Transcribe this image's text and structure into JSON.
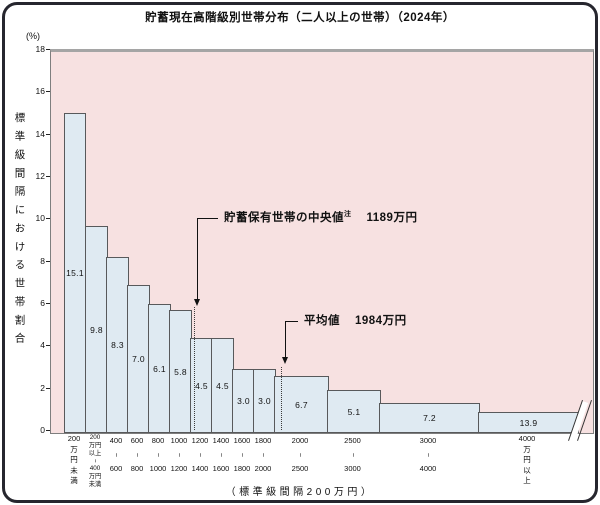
{
  "window": {
    "title": "貯蓄現在高階級別世帯分布（二人以上の世帯）（2024年）"
  },
  "chart_data": {
    "type": "bar",
    "title": "貯蓄現在高階級別世帯分布（二人以上の世帯）（2024年）",
    "y_unit": "(%)",
    "ylabel": "標準級間隔における世帯割合",
    "x_note": "（標準級間隔200万円）",
    "ylim": [
      0,
      18
    ],
    "y_ticks": [
      0,
      2,
      4,
      6,
      8,
      10,
      12,
      14,
      16,
      18
    ],
    "grid": false,
    "legend": "none",
    "categories": [
      "200万円未満",
      "200万円以上〜400万円未満",
      "400〜600",
      "600〜800",
      "800〜1000",
      "1000〜1200",
      "1200〜1400",
      "1400〜1600",
      "1600〜1800",
      "1800〜2000",
      "2000〜2500",
      "2500〜3000",
      "3000〜4000",
      "4000万円以上"
    ],
    "values": [
      15.1,
      9.8,
      8.3,
      7.0,
      6.1,
      5.8,
      4.5,
      4.5,
      3.0,
      3.0,
      6.7,
      5.1,
      7.2,
      13.9
    ],
    "bars": [
      {
        "range_lines": [
          "200",
          "万",
          "円",
          "未",
          "満"
        ],
        "value": 15.1,
        "density": 15.1,
        "interval_units": 1
      },
      {
        "range_lines": [
          "200",
          "万円",
          "以上",
          "~",
          "400",
          "万円",
          "未満"
        ],
        "small": true,
        "value": 9.8,
        "density": 9.8,
        "interval_units": 1
      },
      {
        "range_lines": [
          "400",
          "~",
          "600"
        ],
        "value": 8.3,
        "density": 8.3,
        "interval_units": 1
      },
      {
        "range_lines": [
          "600",
          "~",
          "800"
        ],
        "value": 7.0,
        "density": 7.0,
        "interval_units": 1
      },
      {
        "range_lines": [
          "800",
          "~",
          "1000"
        ],
        "value": 6.1,
        "density": 6.1,
        "interval_units": 1
      },
      {
        "range_lines": [
          "1000",
          "~",
          "1200"
        ],
        "value": 5.8,
        "density": 5.8,
        "interval_units": 1
      },
      {
        "range_lines": [
          "1200",
          "~",
          "1400"
        ],
        "value": 4.5,
        "density": 4.5,
        "interval_units": 1
      },
      {
        "range_lines": [
          "1400",
          "~",
          "1600"
        ],
        "value": 4.5,
        "density": 4.5,
        "interval_units": 1
      },
      {
        "range_lines": [
          "1600",
          "~",
          "1800"
        ],
        "value": 3.0,
        "density": 3.0,
        "interval_units": 1
      },
      {
        "range_lines": [
          "1800",
          "~",
          "2000"
        ],
        "value": 3.0,
        "density": 3.0,
        "interval_units": 1
      },
      {
        "range_lines": [
          "2000",
          "~",
          "2500"
        ],
        "value": 6.7,
        "density": 2.68,
        "interval_units": 2.5
      },
      {
        "range_lines": [
          "2500",
          "~",
          "3000"
        ],
        "value": 5.1,
        "density": 2.04,
        "interval_units": 2.5
      },
      {
        "range_lines": [
          "3000",
          "~",
          "4000"
        ],
        "value": 7.2,
        "density": 1.44,
        "interval_units": 5
      },
      {
        "range_lines": [
          "4000",
          "万",
          "円",
          "以",
          "上"
        ],
        "value": 13.9,
        "density": 1.0,
        "interval_units": 5,
        "truncated": true
      }
    ],
    "annotations": {
      "median": {
        "label": "貯蓄保有世帯の中央値",
        "sup": "注",
        "value_text": "1189万円",
        "amount_man_yen": 1189
      },
      "mean": {
        "label": "平均値",
        "value_text": "1984万円",
        "amount_man_yen": 1984
      }
    }
  },
  "colors": {
    "plot_bg": "#f7e1e1",
    "bar_fill": "#dfeaf2",
    "bar_border": "#58595b",
    "frame_border": "#26262e",
    "annotation_line": "#111111",
    "dotted_line": "#3a3a3a"
  }
}
